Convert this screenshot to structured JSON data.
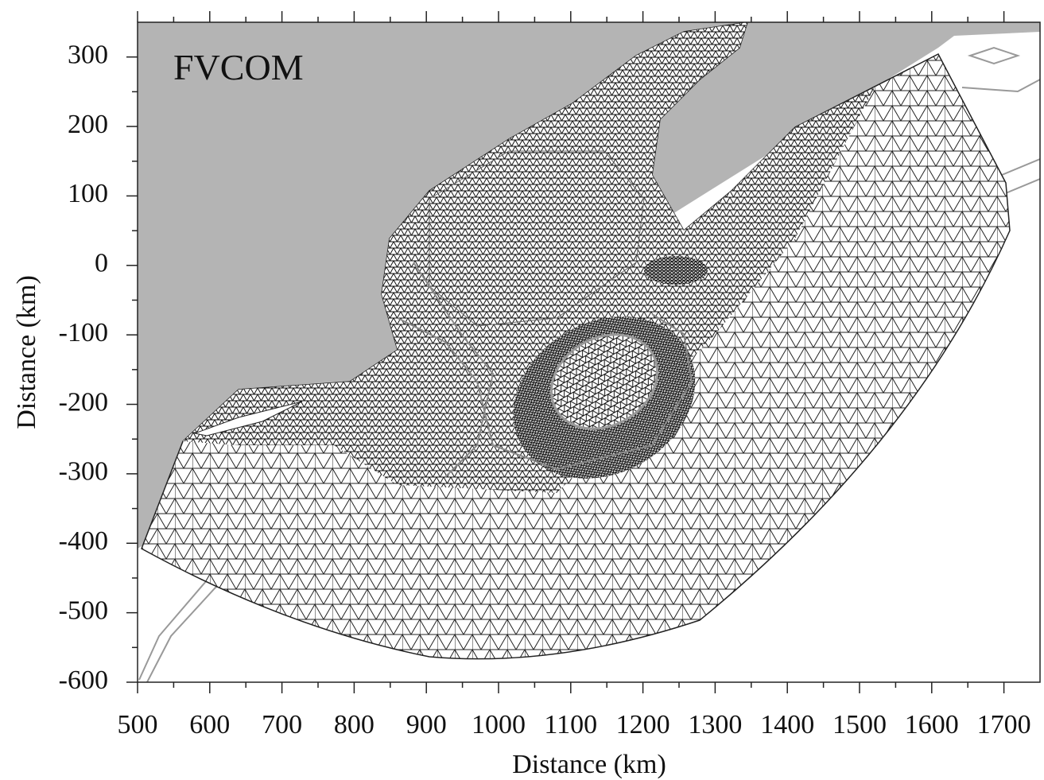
{
  "chart_data": {
    "type": "mesh-map",
    "annotation": "FVCOM",
    "x_label": "Distance (km)",
    "y_label": "Distance (km)",
    "xlim": [
      500,
      1750
    ],
    "ylim": [
      -600,
      350
    ],
    "xticks": [
      500,
      600,
      700,
      800,
      900,
      1000,
      1100,
      1200,
      1300,
      1400,
      1500,
      1600,
      1700
    ],
    "yticks": [
      -600,
      -500,
      -400,
      -300,
      -200,
      -100,
      0,
      100,
      200,
      300
    ]
  }
}
